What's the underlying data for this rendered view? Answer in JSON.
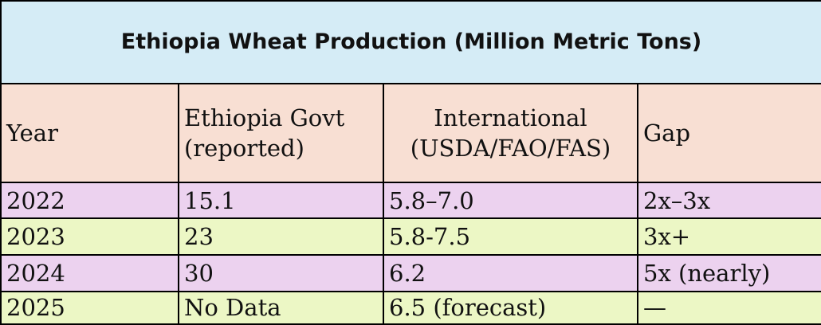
{
  "table": {
    "title": "Ethiopia Wheat Production (Million Metric Tons)",
    "headers": {
      "year": "Year",
      "govt_line1": "Ethiopia Govt",
      "govt_line2": "(reported)",
      "intl_line1": "International",
      "intl_line2": "(USDA/FAO/FAS)",
      "gap": "Gap"
    },
    "rows": [
      {
        "year": "2022",
        "govt": "15.1",
        "intl": "5.8–7.0",
        "gap": "2x–3x"
      },
      {
        "year": "2023",
        "govt": "23",
        "intl": "5.8-7.5",
        "gap": "3x+"
      },
      {
        "year": "2024",
        "govt": "30",
        "intl": "6.2",
        "gap": "5x (nearly)"
      },
      {
        "year": "2025",
        "govt": "No Data",
        "intl": "6.5 (forecast)",
        "gap": "—"
      }
    ],
    "colors": {
      "title_bg": "#d5ecf6",
      "header_bg": "#f8dfd3",
      "odd_row_bg": "#ecd2ef",
      "even_row_bg": "#ecf7c5"
    }
  }
}
